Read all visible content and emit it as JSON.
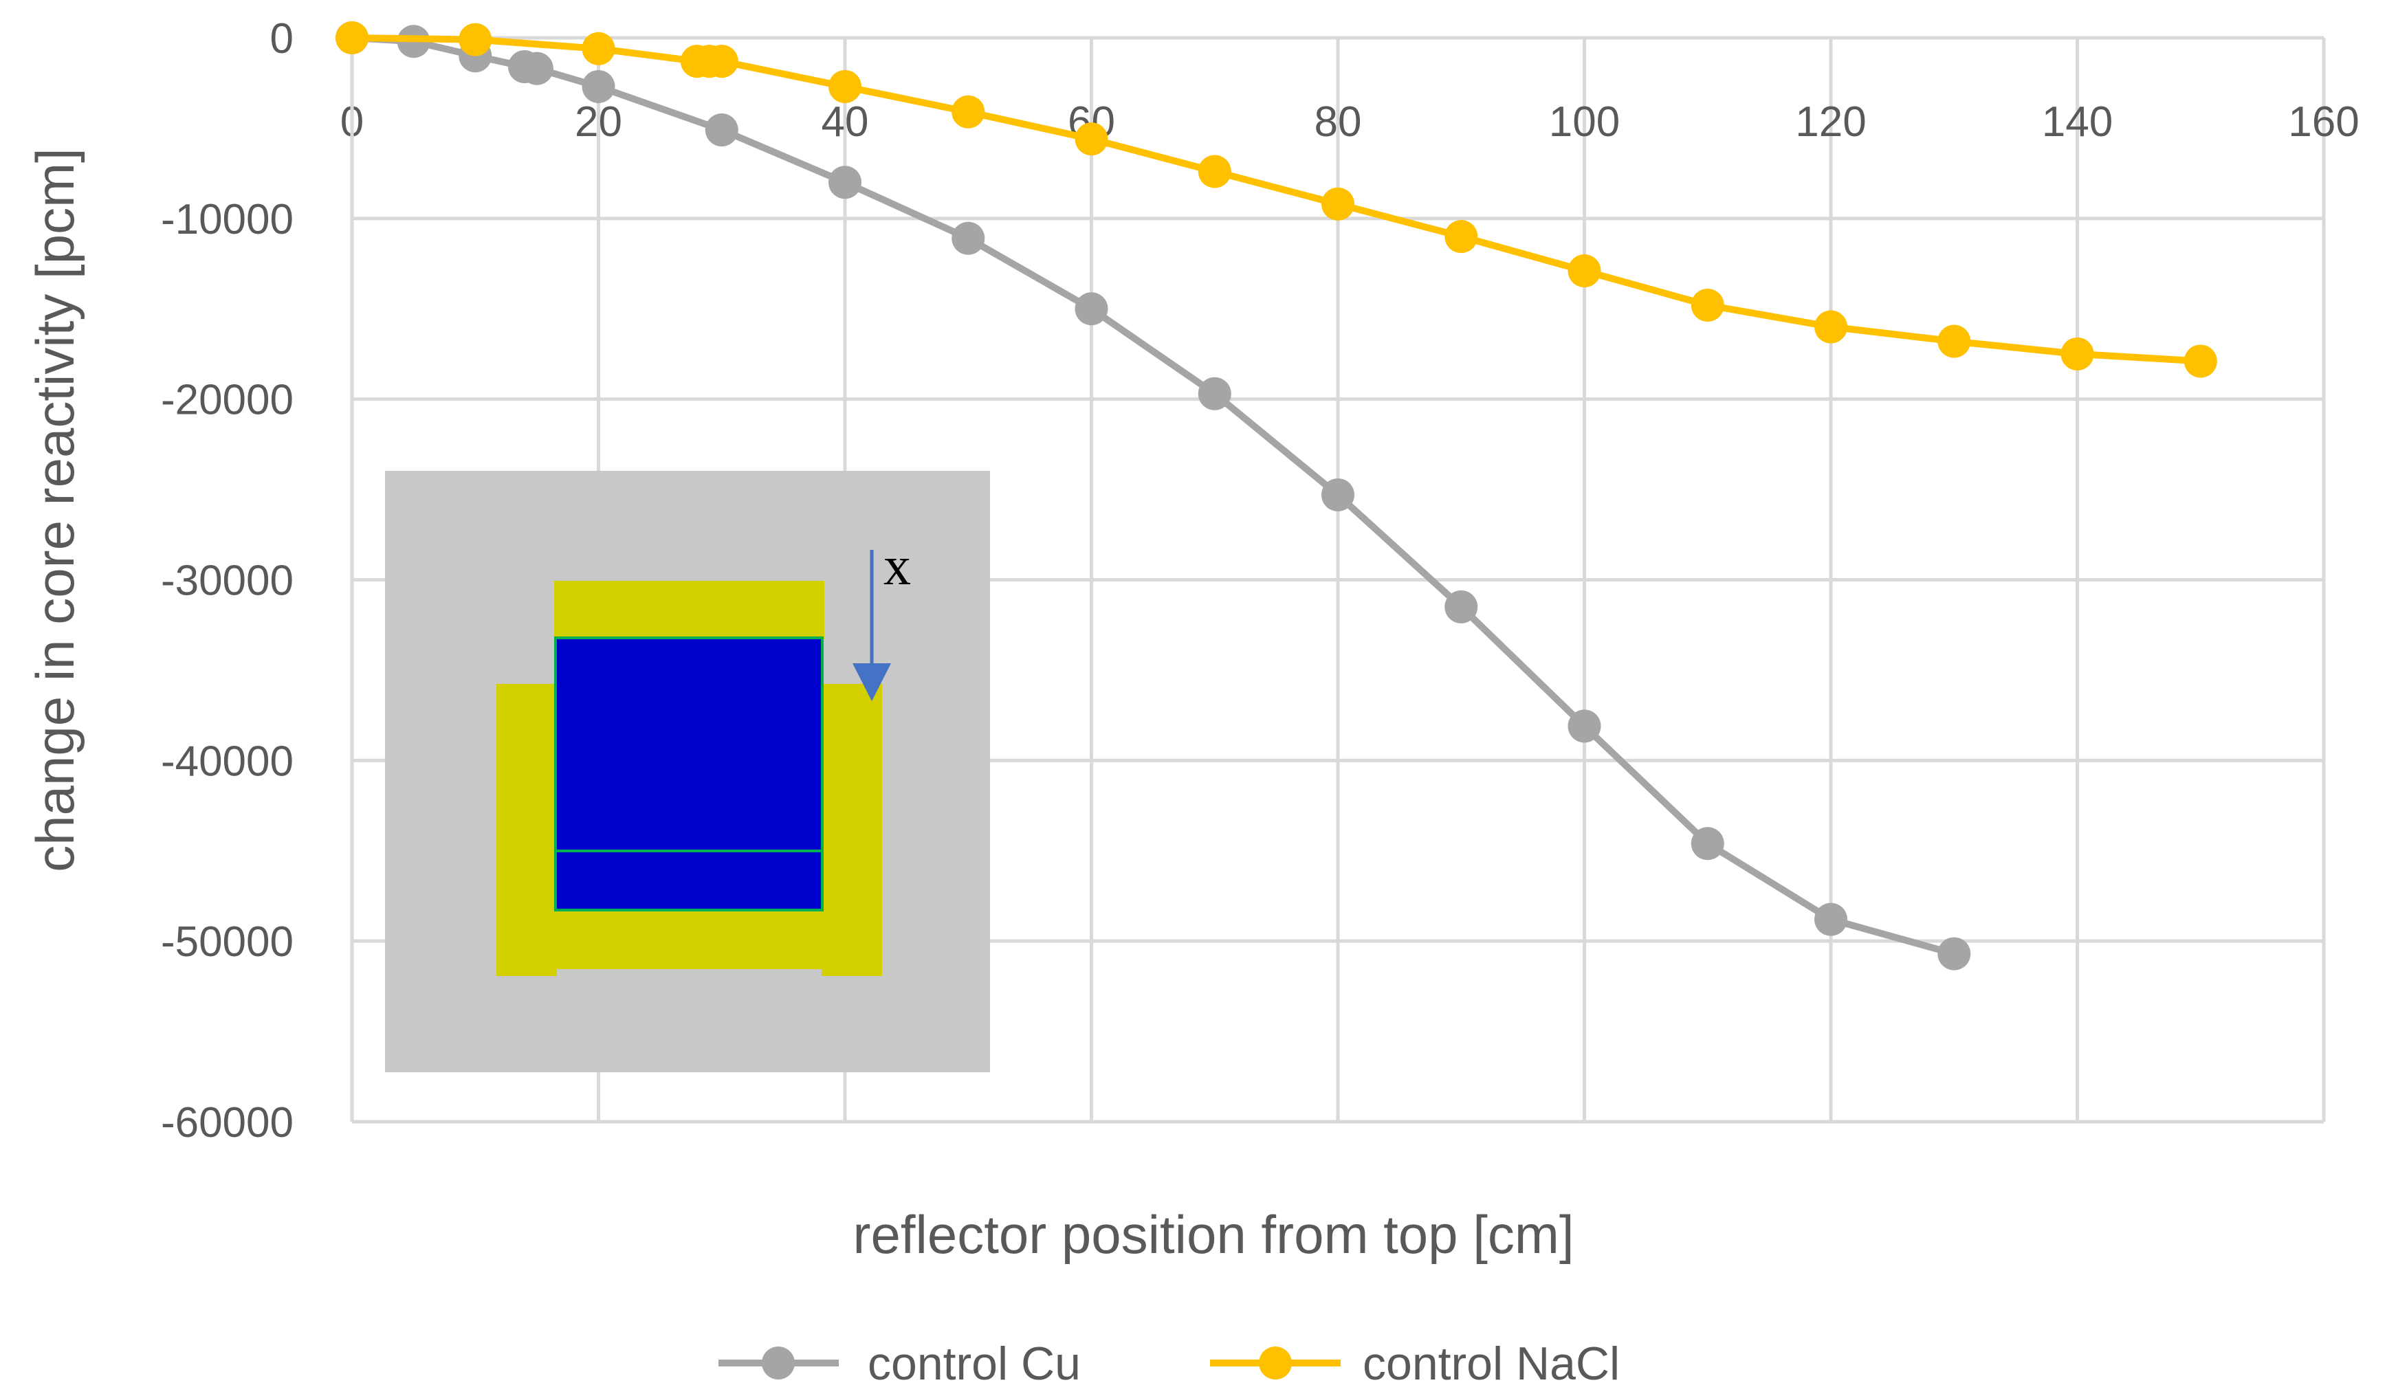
{
  "chart_data": {
    "type": "line",
    "title": "",
    "xlabel": "reflector position from top [cm]",
    "ylabel": "change in core reactivity [pcm]",
    "xlim": [
      0,
      160
    ],
    "ylim": [
      -60000,
      0
    ],
    "x_ticks": [
      0,
      20,
      40,
      60,
      80,
      100,
      120,
      140,
      160
    ],
    "y_ticks": [
      0,
      -10000,
      -20000,
      -30000,
      -40000,
      -50000,
      -60000
    ],
    "x_axis_position": "top",
    "grid": true,
    "legend_position": "bottom",
    "series": [
      {
        "name": "control Cu",
        "color": "#a5a5a5",
        "x": [
          0,
          5,
          10,
          14,
          15,
          20,
          30,
          40,
          50,
          60,
          70,
          80,
          90,
          100,
          110,
          120,
          130
        ],
        "y": [
          0,
          -200,
          -1000,
          -1600,
          -1700,
          -2700,
          -5100,
          -8000,
          -11100,
          -15000,
          -19700,
          -25300,
          -31500,
          -38100,
          -44600,
          -48800,
          -50700
        ]
      },
      {
        "name": "control NaCl",
        "color": "#ffc000",
        "x": [
          0,
          10,
          20,
          28,
          29,
          30,
          40,
          50,
          60,
          70,
          80,
          90,
          100,
          110,
          120,
          130,
          140,
          150
        ],
        "y": [
          0,
          -100,
          -600,
          -1300,
          -1300,
          -1300,
          -2700,
          -4100,
          -5600,
          -7400,
          -9200,
          -11000,
          -12900,
          -14800,
          -16000,
          -16800,
          -17500,
          -17900
        ]
      }
    ],
    "inset": {
      "label": "x",
      "colors": {
        "background": "#c8c8c8",
        "reflector": "#d4d000",
        "core": "#0000cc",
        "outline": "#00b050",
        "arrow": "#4472c4"
      }
    }
  }
}
